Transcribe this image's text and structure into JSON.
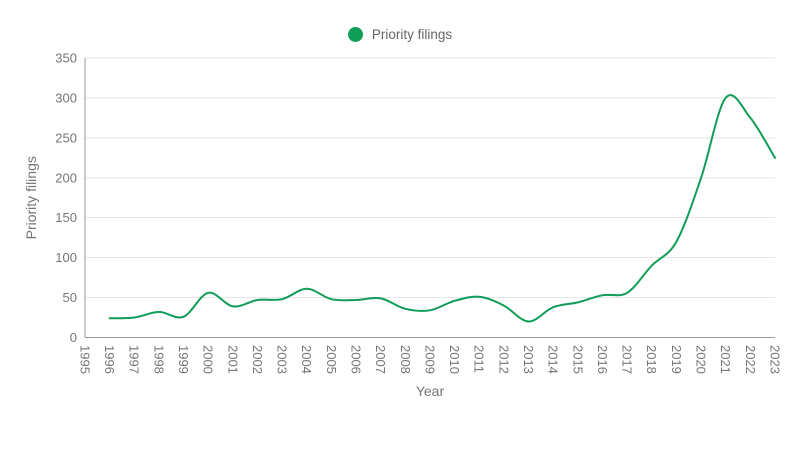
{
  "page": {
    "background": "#ffffff"
  },
  "legend": {
    "label": "Priority filings",
    "marker_color": "#0f9d58"
  },
  "style": {
    "accent": "#0f9d58",
    "gridline_color": "#e6e6e6",
    "axis_line_color": "#9a9a9a",
    "tick_text_color": "#757575",
    "title_text_color": "#757575",
    "legend_text_color": "#666666",
    "line_width": 2
  },
  "chart_data": {
    "type": "line",
    "title": "",
    "xlabel": "Year",
    "ylabel": "Priority filings",
    "legend_position": "top",
    "grid": true,
    "smooth": true,
    "xlim": [
      1995,
      2023
    ],
    "ylim": [
      0,
      350
    ],
    "yticks": [
      0,
      50,
      100,
      150,
      200,
      250,
      300,
      350
    ],
    "xtick_labels": [
      "1995",
      "1996",
      "1997",
      "1998",
      "1999",
      "2000",
      "2001",
      "2002",
      "2003",
      "2004",
      "2005",
      "2006",
      "2007",
      "2008",
      "2009",
      "2010",
      "2011",
      "2012",
      "2013",
      "2014",
      "2015",
      "2016",
      "2017",
      "2018",
      "2019",
      "2020",
      "2021",
      "2022",
      "2023"
    ],
    "series": [
      {
        "name": "Priority filings",
        "color": "#0f9d58",
        "x": [
          1996,
          1997,
          1998,
          1999,
          2000,
          2001,
          2002,
          2003,
          2004,
          2005,
          2006,
          2007,
          2008,
          2009,
          2010,
          2011,
          2012,
          2013,
          2014,
          2015,
          2016,
          2017,
          2018,
          2019,
          2020,
          2021,
          2022,
          2023
        ],
        "values": [
          24,
          25,
          32,
          26,
          56,
          39,
          47,
          48,
          61,
          48,
          47,
          49,
          36,
          34,
          46,
          51,
          40,
          20,
          38,
          44,
          53,
          56,
          90,
          120,
          200,
          300,
          275,
          225
        ]
      }
    ]
  }
}
